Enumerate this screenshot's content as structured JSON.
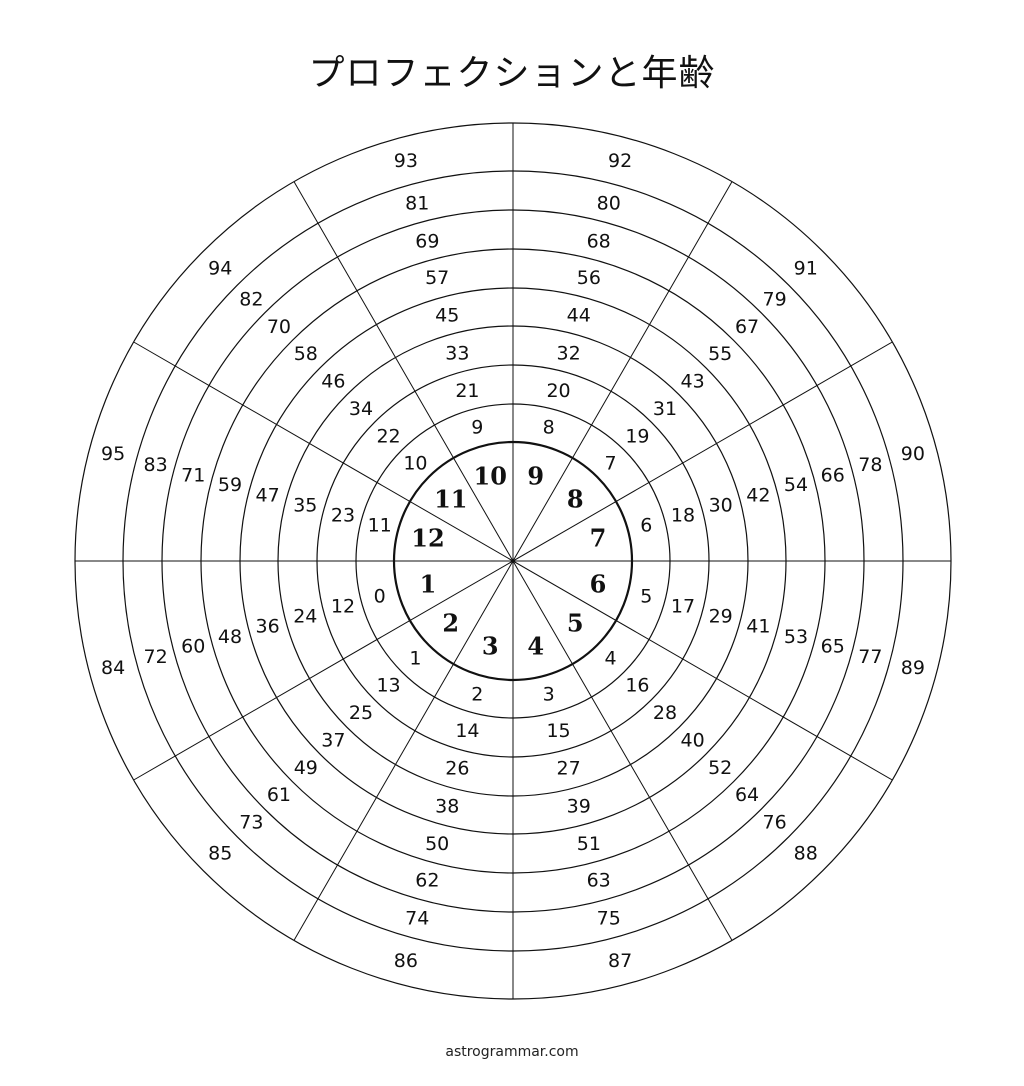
{
  "title": "プロフェクションと年齢",
  "footer": "astrogrammar.com",
  "houses": [
    "1",
    "2",
    "3",
    "4",
    "5",
    "6",
    "7",
    "8",
    "9",
    "10",
    "11",
    "12"
  ],
  "age_rings": [
    [
      0,
      1,
      2,
      3,
      4,
      5,
      6,
      7,
      8,
      9,
      10,
      11
    ],
    [
      12,
      13,
      14,
      15,
      16,
      17,
      18,
      19,
      20,
      21,
      22,
      23
    ],
    [
      24,
      25,
      26,
      27,
      28,
      29,
      30,
      31,
      32,
      33,
      34,
      35
    ],
    [
      36,
      37,
      38,
      39,
      40,
      41,
      42,
      43,
      44,
      45,
      46,
      47
    ],
    [
      48,
      49,
      50,
      51,
      52,
      53,
      54,
      55,
      56,
      57,
      58,
      59
    ],
    [
      60,
      61,
      62,
      63,
      64,
      65,
      66,
      67,
      68,
      69,
      70,
      71
    ],
    [
      72,
      73,
      74,
      75,
      76,
      77,
      78,
      79,
      80,
      81,
      82,
      83
    ],
    [
      84,
      85,
      86,
      87,
      88,
      89,
      90,
      91,
      92,
      93,
      94,
      95
    ]
  ],
  "colors": {
    "line": "#111111",
    "background": "#ffffff"
  }
}
